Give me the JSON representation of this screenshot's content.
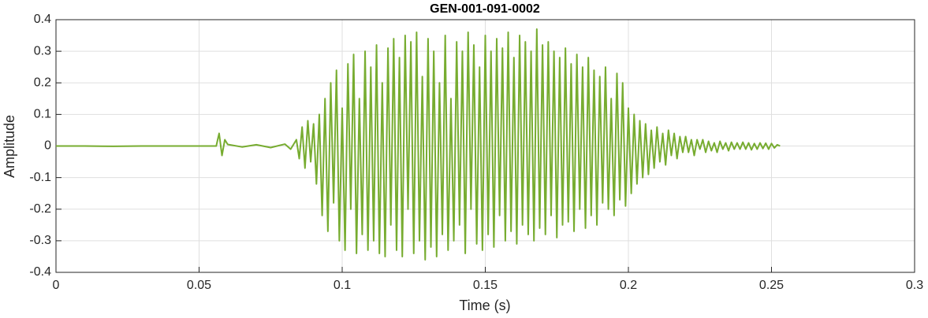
{
  "chart_data": {
    "type": "line",
    "title": "GEN-001-091-0002",
    "x_label": "Time (s)",
    "y_label": "Amplitude",
    "xlim": [
      0,
      0.3
    ],
    "xticks": [
      0,
      0.05,
      0.1,
      0.15,
      0.2,
      0.25,
      0.3
    ],
    "ylim": [
      -0.4,
      0.4
    ],
    "yticks": [
      -0.4,
      -0.3,
      -0.2,
      -0.1,
      0,
      0.1,
      0.2,
      0.3,
      0.4
    ],
    "grid": true,
    "series": [
      {
        "color": "#77ac30",
        "x": [
          0,
          0.01,
          0.02,
          0.03,
          0.04,
          0.05,
          0.056,
          0.057,
          0.058,
          0.059,
          0.06,
          0.065,
          0.07,
          0.075,
          0.08,
          0.082,
          0.084,
          0.085,
          0.086,
          0.087,
          0.088,
          0.089,
          0.09,
          0.091,
          0.092,
          0.093,
          0.094,
          0.095,
          0.096,
          0.097,
          0.098,
          0.099,
          0.1,
          0.101,
          0.102,
          0.103,
          0.104,
          0.105,
          0.106,
          0.107,
          0.108,
          0.109,
          0.11,
          0.111,
          0.112,
          0.113,
          0.114,
          0.115,
          0.116,
          0.117,
          0.118,
          0.119,
          0.12,
          0.121,
          0.122,
          0.123,
          0.124,
          0.125,
          0.126,
          0.127,
          0.128,
          0.129,
          0.13,
          0.131,
          0.132,
          0.133,
          0.134,
          0.135,
          0.136,
          0.137,
          0.138,
          0.139,
          0.14,
          0.141,
          0.142,
          0.143,
          0.144,
          0.145,
          0.146,
          0.147,
          0.148,
          0.149,
          0.15,
          0.151,
          0.152,
          0.153,
          0.154,
          0.155,
          0.156,
          0.157,
          0.158,
          0.159,
          0.16,
          0.161,
          0.162,
          0.163,
          0.164,
          0.165,
          0.166,
          0.167,
          0.168,
          0.169,
          0.17,
          0.171,
          0.172,
          0.173,
          0.174,
          0.175,
          0.176,
          0.177,
          0.178,
          0.179,
          0.18,
          0.181,
          0.182,
          0.183,
          0.184,
          0.185,
          0.186,
          0.187,
          0.188,
          0.189,
          0.19,
          0.191,
          0.192,
          0.193,
          0.194,
          0.195,
          0.196,
          0.197,
          0.198,
          0.199,
          0.2,
          0.201,
          0.202,
          0.203,
          0.204,
          0.205,
          0.206,
          0.207,
          0.208,
          0.209,
          0.21,
          0.211,
          0.212,
          0.213,
          0.214,
          0.215,
          0.216,
          0.217,
          0.218,
          0.219,
          0.22,
          0.221,
          0.222,
          0.223,
          0.224,
          0.225,
          0.226,
          0.227,
          0.228,
          0.229,
          0.23,
          0.231,
          0.232,
          0.233,
          0.234,
          0.235,
          0.236,
          0.237,
          0.238,
          0.239,
          0.24,
          0.241,
          0.242,
          0.243,
          0.244,
          0.245,
          0.246,
          0.247,
          0.248,
          0.249,
          0.25,
          0.251,
          0.252,
          0.253
        ],
        "values": [
          0,
          0,
          -0.001,
          0,
          0,
          0,
          0,
          0.04,
          -0.03,
          0.02,
          0.005,
          -0.003,
          0.004,
          -0.005,
          0.006,
          -0.01,
          0.02,
          -0.04,
          0.06,
          -0.07,
          0.08,
          -0.05,
          0.07,
          -0.12,
          0.1,
          -0.22,
          0.15,
          -0.27,
          0.2,
          -0.18,
          0.24,
          -0.3,
          0.12,
          -0.33,
          0.26,
          -0.2,
          0.29,
          -0.34,
          0.15,
          -0.28,
          0.3,
          -0.33,
          0.25,
          -0.3,
          0.32,
          -0.34,
          0.2,
          -0.35,
          0.31,
          -0.25,
          0.34,
          -0.33,
          0.28,
          -0.35,
          0.35,
          -0.2,
          0.33,
          -0.34,
          0.36,
          -0.3,
          0.22,
          -0.36,
          0.34,
          -0.32,
          0.3,
          -0.35,
          0.2,
          -0.28,
          0.35,
          -0.33,
          0.15,
          -0.3,
          0.33,
          -0.25,
          0.3,
          -0.34,
          0.36,
          -0.2,
          0.32,
          -0.31,
          0.25,
          -0.33,
          0.35,
          -0.28,
          0.3,
          -0.32,
          0.34,
          -0.22,
          0.31,
          -0.3,
          0.36,
          -0.27,
          0.28,
          -0.31,
          0.35,
          -0.25,
          0.33,
          -0.28,
          0.3,
          -0.3,
          0.37,
          -0.26,
          0.32,
          -0.28,
          0.33,
          -0.22,
          0.3,
          -0.29,
          0.28,
          -0.25,
          0.31,
          -0.24,
          0.26,
          -0.27,
          0.29,
          -0.2,
          0.25,
          -0.26,
          0.28,
          -0.22,
          0.24,
          -0.25,
          0.22,
          -0.18,
          0.25,
          -0.2,
          0.15,
          -0.22,
          0.23,
          -0.17,
          0.2,
          -0.19,
          0.12,
          -0.15,
          0.1,
          -0.12,
          0.08,
          -0.1,
          0.07,
          -0.09,
          0.05,
          -0.07,
          0.06,
          -0.05,
          0.04,
          -0.06,
          0.05,
          -0.03,
          0.04,
          -0.04,
          0.03,
          -0.02,
          0.03,
          -0.02,
          0.02,
          -0.03,
          0.02,
          -0.01,
          0.02,
          -0.02,
          0.015,
          -0.015,
          0.01,
          -0.02,
          0.015,
          -0.01,
          0.01,
          -0.015,
          0.012,
          -0.01,
          0.01,
          -0.01,
          0.012,
          -0.01,
          0.01,
          -0.012,
          0.008,
          -0.01,
          0.01,
          -0.008,
          0.009,
          -0.01,
          0.008,
          -0.006,
          0.004,
          0
        ]
      }
    ]
  }
}
